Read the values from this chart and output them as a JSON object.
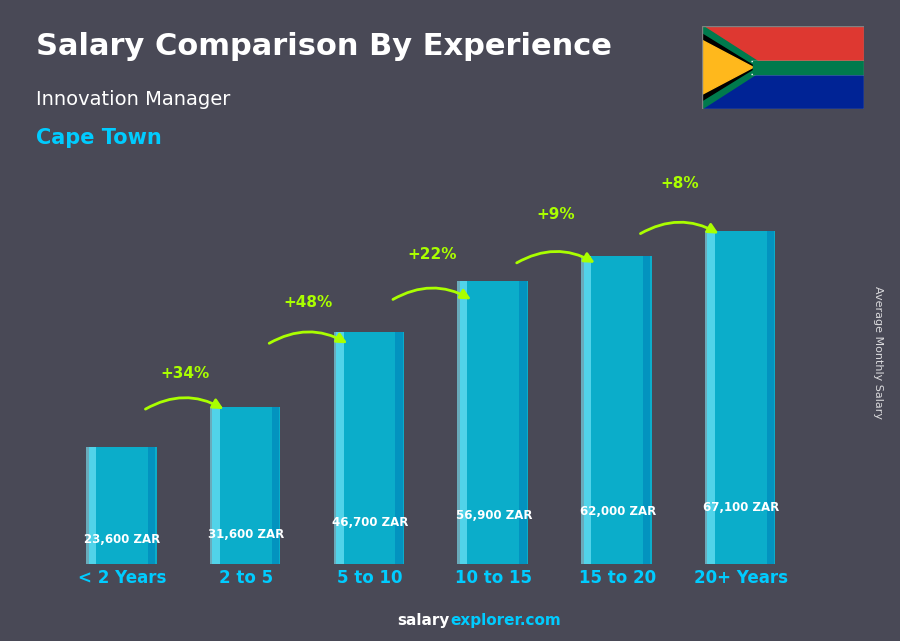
{
  "title": "Salary Comparison By Experience",
  "subtitle": "Innovation Manager",
  "city": "Cape Town",
  "ylabel": "Average Monthly Salary",
  "footer": "salaryexplorer.com",
  "categories": [
    "< 2 Years",
    "2 to 5",
    "5 to 10",
    "10 to 15",
    "15 to 20",
    "20+ Years"
  ],
  "values": [
    23600,
    31600,
    46700,
    56900,
    62000,
    67100
  ],
  "labels": [
    "23,600 ZAR",
    "31,600 ZAR",
    "46,700 ZAR",
    "56,900 ZAR",
    "62,000 ZAR",
    "67,100 ZAR"
  ],
  "pct_changes": [
    null,
    "+34%",
    "+48%",
    "+22%",
    "+9%",
    "+8%"
  ],
  "bar_color_top": "#00d4ff",
  "bar_color_mid": "#00aadd",
  "bar_color_bottom": "#0077bb",
  "background_color": "#1a1a2e",
  "title_color": "#ffffff",
  "subtitle_color": "#ffffff",
  "city_color": "#00ccff",
  "label_color": "#ffffff",
  "pct_color": "#aaff00",
  "arrow_color": "#aaff00",
  "xticklabel_color": "#00ccff",
  "footer_salary_color": "#ffffff",
  "footer_explorer_color": "#00ccff",
  "ylim": [
    0,
    80000
  ]
}
